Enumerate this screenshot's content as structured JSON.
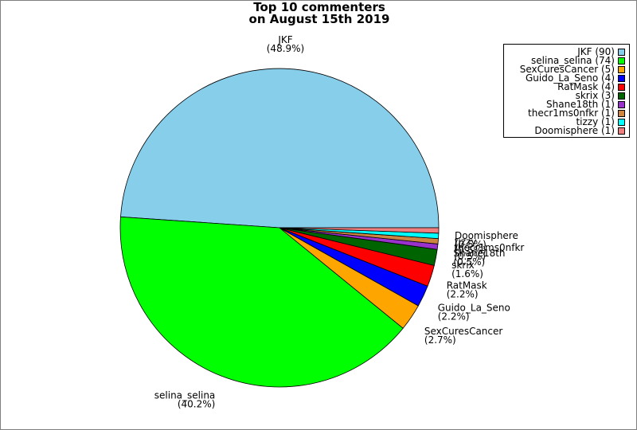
{
  "chart_data": {
    "type": "pie",
    "title_lines": [
      "Top 10 commenters",
      "on August 15th 2019"
    ],
    "slices": [
      {
        "name": "JKF",
        "value": 90,
        "percent": "48.9%",
        "legend": "JKF (90)",
        "color": "#87ceeb"
      },
      {
        "name": "selina_selina",
        "value": 74,
        "percent": "40.2%",
        "legend": "selina_selina (74)",
        "color": "#00ff00"
      },
      {
        "name": "SexCuresCancer",
        "value": 5,
        "percent": "2.7%",
        "legend": "SexCuresCancer (5)",
        "color": "#ffa500"
      },
      {
        "name": "Guido_La_Seno",
        "value": 4,
        "percent": "2.2%",
        "legend": "Guido_La_Seno (4)",
        "color": "#0000ff"
      },
      {
        "name": "RatMask",
        "value": 4,
        "percent": "2.2%",
        "legend": "RatMask (4)",
        "color": "#ff0000"
      },
      {
        "name": "skrix",
        "value": 3,
        "percent": "1.6%",
        "legend": "skrix (3)",
        "color": "#006400"
      },
      {
        "name": "Shane18th",
        "value": 1,
        "percent": "0.5%",
        "legend": "Shane18th (1)",
        "color": "#9932cc"
      },
      {
        "name": "thecr1ms0nfkr",
        "value": 1,
        "percent": "0.5%",
        "legend": "thecr1ms0nfkr (1)",
        "color": "#cd853f"
      },
      {
        "name": "tizzy",
        "value": 1,
        "percent": "0.5%",
        "legend": "tizzy (1)",
        "color": "#00ffff"
      },
      {
        "name": "Doomisphere",
        "value": 1,
        "percent": "0.5%",
        "legend": "Doomisphere (1)",
        "color": "#f08080"
      }
    ],
    "legend_position": "top-right"
  }
}
